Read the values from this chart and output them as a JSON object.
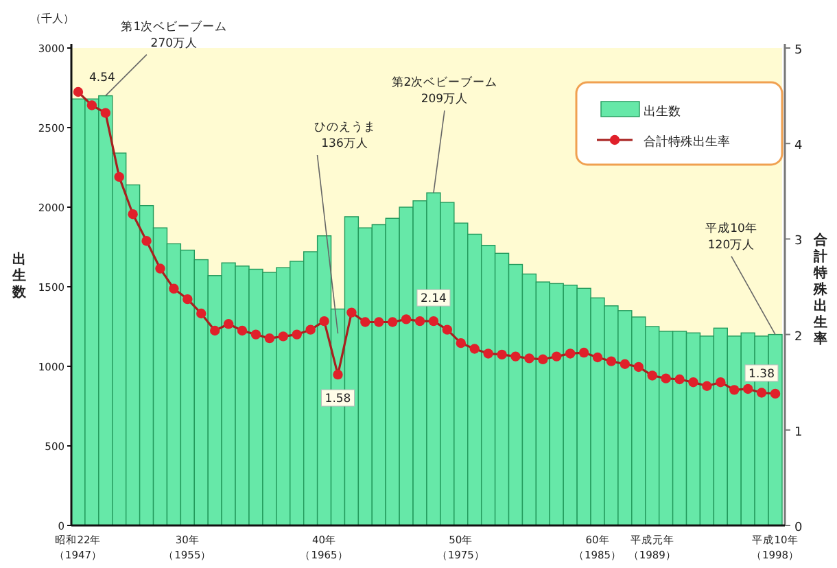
{
  "chart_data": {
    "type": "bar",
    "categories": [
      "昭和22年（1947）",
      null,
      null,
      null,
      null,
      null,
      null,
      null,
      "30年（1955）",
      null,
      null,
      null,
      null,
      null,
      null,
      null,
      null,
      null,
      "40年（1965）",
      null,
      null,
      null,
      null,
      null,
      null,
      null,
      null,
      null,
      "50年（1975）",
      null,
      null,
      null,
      null,
      null,
      null,
      null,
      null,
      null,
      "60年（1985）",
      null,
      null,
      null,
      "平成元年（1989）",
      null,
      null,
      null,
      null,
      null,
      null,
      null,
      null,
      "平成10年（1998）"
    ],
    "series": [
      {
        "name": "出生数",
        "color": "#66e8a8",
        "values": [
          2680,
          2680,
          2700,
          2340,
          2140,
          2010,
          1870,
          1770,
          1730,
          1670,
          1570,
          1650,
          1630,
          1610,
          1590,
          1620,
          1660,
          1720,
          1820,
          1360,
          1940,
          1870,
          1890,
          1930,
          2000,
          2040,
          2090,
          2030,
          1900,
          1830,
          1760,
          1710,
          1640,
          1580,
          1530,
          1520,
          1510,
          1490,
          1430,
          1380,
          1350,
          1310,
          1250,
          1220,
          1220,
          1210,
          1190,
          1240,
          1190,
          1210,
          1190,
          1200
        ],
        "value_labels": [
          null,
          null,
          "第1次ベビーブーム\n270万人",
          null,
          null,
          null,
          null,
          null,
          null,
          null,
          null,
          null,
          null,
          null,
          null,
          null,
          null,
          null,
          null,
          "ひのえうま\n136万人",
          null,
          null,
          null,
          null,
          null,
          null,
          "第2次ベビーブーム\n209万人",
          null,
          null,
          null,
          null,
          null,
          null,
          null,
          null,
          null,
          null,
          null,
          null,
          null,
          null,
          null,
          null,
          null,
          null,
          null,
          null,
          null,
          null,
          null,
          null,
          "平成10年\n120万人"
        ]
      },
      {
        "name": "合計特殊出生率",
        "type": "line",
        "axis": "y2",
        "color": "#e0202a",
        "marker": "circle",
        "values": [
          4.54,
          4.4,
          4.32,
          3.65,
          3.26,
          2.98,
          2.69,
          2.48,
          2.37,
          2.22,
          2.04,
          2.11,
          2.04,
          2.0,
          1.96,
          1.98,
          2.0,
          2.05,
          2.14,
          1.58,
          2.23,
          2.13,
          2.13,
          2.13,
          2.16,
          2.14,
          2.14,
          2.05,
          1.91,
          1.85,
          1.8,
          1.79,
          1.77,
          1.75,
          1.74,
          1.77,
          1.8,
          1.81,
          1.76,
          1.72,
          1.69,
          1.66,
          1.57,
          1.54,
          1.53,
          1.5,
          1.46,
          1.5,
          1.42,
          1.43,
          1.39,
          1.38
        ],
        "value_labels": [
          "4.54",
          null,
          null,
          null,
          null,
          null,
          null,
          null,
          null,
          null,
          null,
          null,
          null,
          null,
          null,
          null,
          null,
          null,
          null,
          "1.58",
          null,
          null,
          null,
          null,
          null,
          null,
          "2.14",
          null,
          null,
          null,
          null,
          null,
          null,
          null,
          null,
          null,
          null,
          null,
          null,
          null,
          null,
          null,
          null,
          null,
          null,
          null,
          null,
          null,
          null,
          null,
          null,
          "1.38"
        ]
      }
    ],
    "ylabel": "出生数",
    "y2label": "合計特殊出生率",
    "annotations": [
      "（千人）"
    ],
    "ylim": [
      0,
      3000
    ],
    "yticks": [
      0,
      500,
      1000,
      1500,
      2000,
      2500,
      3000
    ],
    "y2lim": [
      0,
      5
    ],
    "y2ticks": [
      0,
      1,
      2,
      3,
      4,
      5
    ],
    "legend": "top right",
    "grid": false
  }
}
